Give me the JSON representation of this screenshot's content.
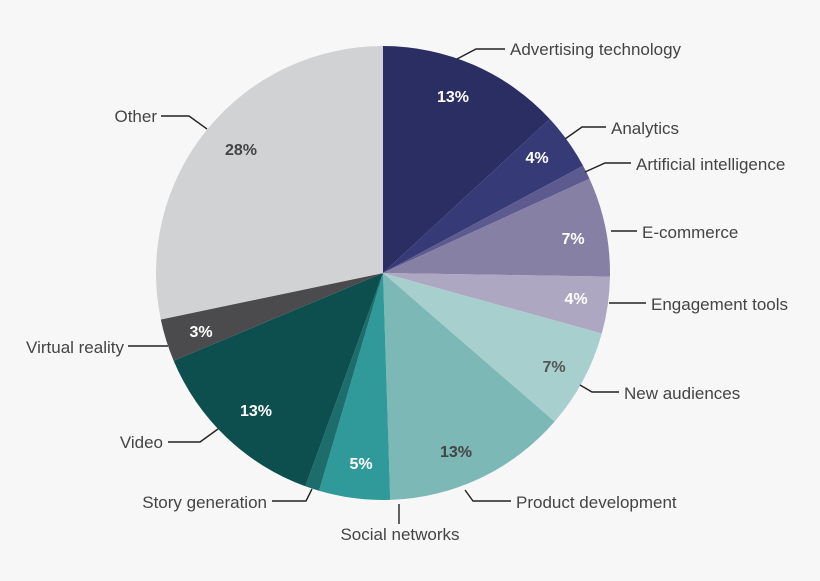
{
  "chart_data": {
    "type": "pie",
    "title": "",
    "slices": [
      {
        "label": "Advertising technology",
        "value": 13,
        "pct_text": "13%",
        "color": "#2b2e62",
        "text_color": "#ffffff"
      },
      {
        "label": "Analytics",
        "value": 4,
        "pct_text": "4%",
        "color": "#363b78",
        "text_color": "#ffffff"
      },
      {
        "label": "Artificial intelligence",
        "value": 1,
        "pct_text": "",
        "color": "#5d5a8f",
        "text_color": "#ffffff"
      },
      {
        "label": "E-commerce",
        "value": 7,
        "pct_text": "7%",
        "color": "#8780a5",
        "text_color": "#ffffff"
      },
      {
        "label": "Engagement tools",
        "value": 4,
        "pct_text": "4%",
        "color": "#ada7c2",
        "text_color": "#ffffff"
      },
      {
        "label": "New audiences",
        "value": 7,
        "pct_text": "7%",
        "color": "#a6cfce",
        "text_color": "#555555"
      },
      {
        "label": "Product development",
        "value": 13,
        "pct_text": "13%",
        "color": "#7bb8b6",
        "text_color": "#444444"
      },
      {
        "label": "Social networks",
        "value": 5,
        "pct_text": "5%",
        "color": "#2f9a99",
        "text_color": "#ffffff"
      },
      {
        "label": "Story generation",
        "value": 1,
        "pct_text": "",
        "color": "#1c6d6b",
        "text_color": "#ffffff"
      },
      {
        "label": "Video",
        "value": 13,
        "pct_text": "13%",
        "color": "#0d4f4e",
        "text_color": "#ffffff"
      },
      {
        "label": "Virtual reality",
        "value": 3,
        "pct_text": "3%",
        "color": "#4b4b4d",
        "text_color": "#ffffff"
      },
      {
        "label": "Other",
        "value": 28,
        "pct_text": "28%",
        "color": "#d1d2d4",
        "text_color": "#444444"
      }
    ],
    "legend": "none"
  }
}
